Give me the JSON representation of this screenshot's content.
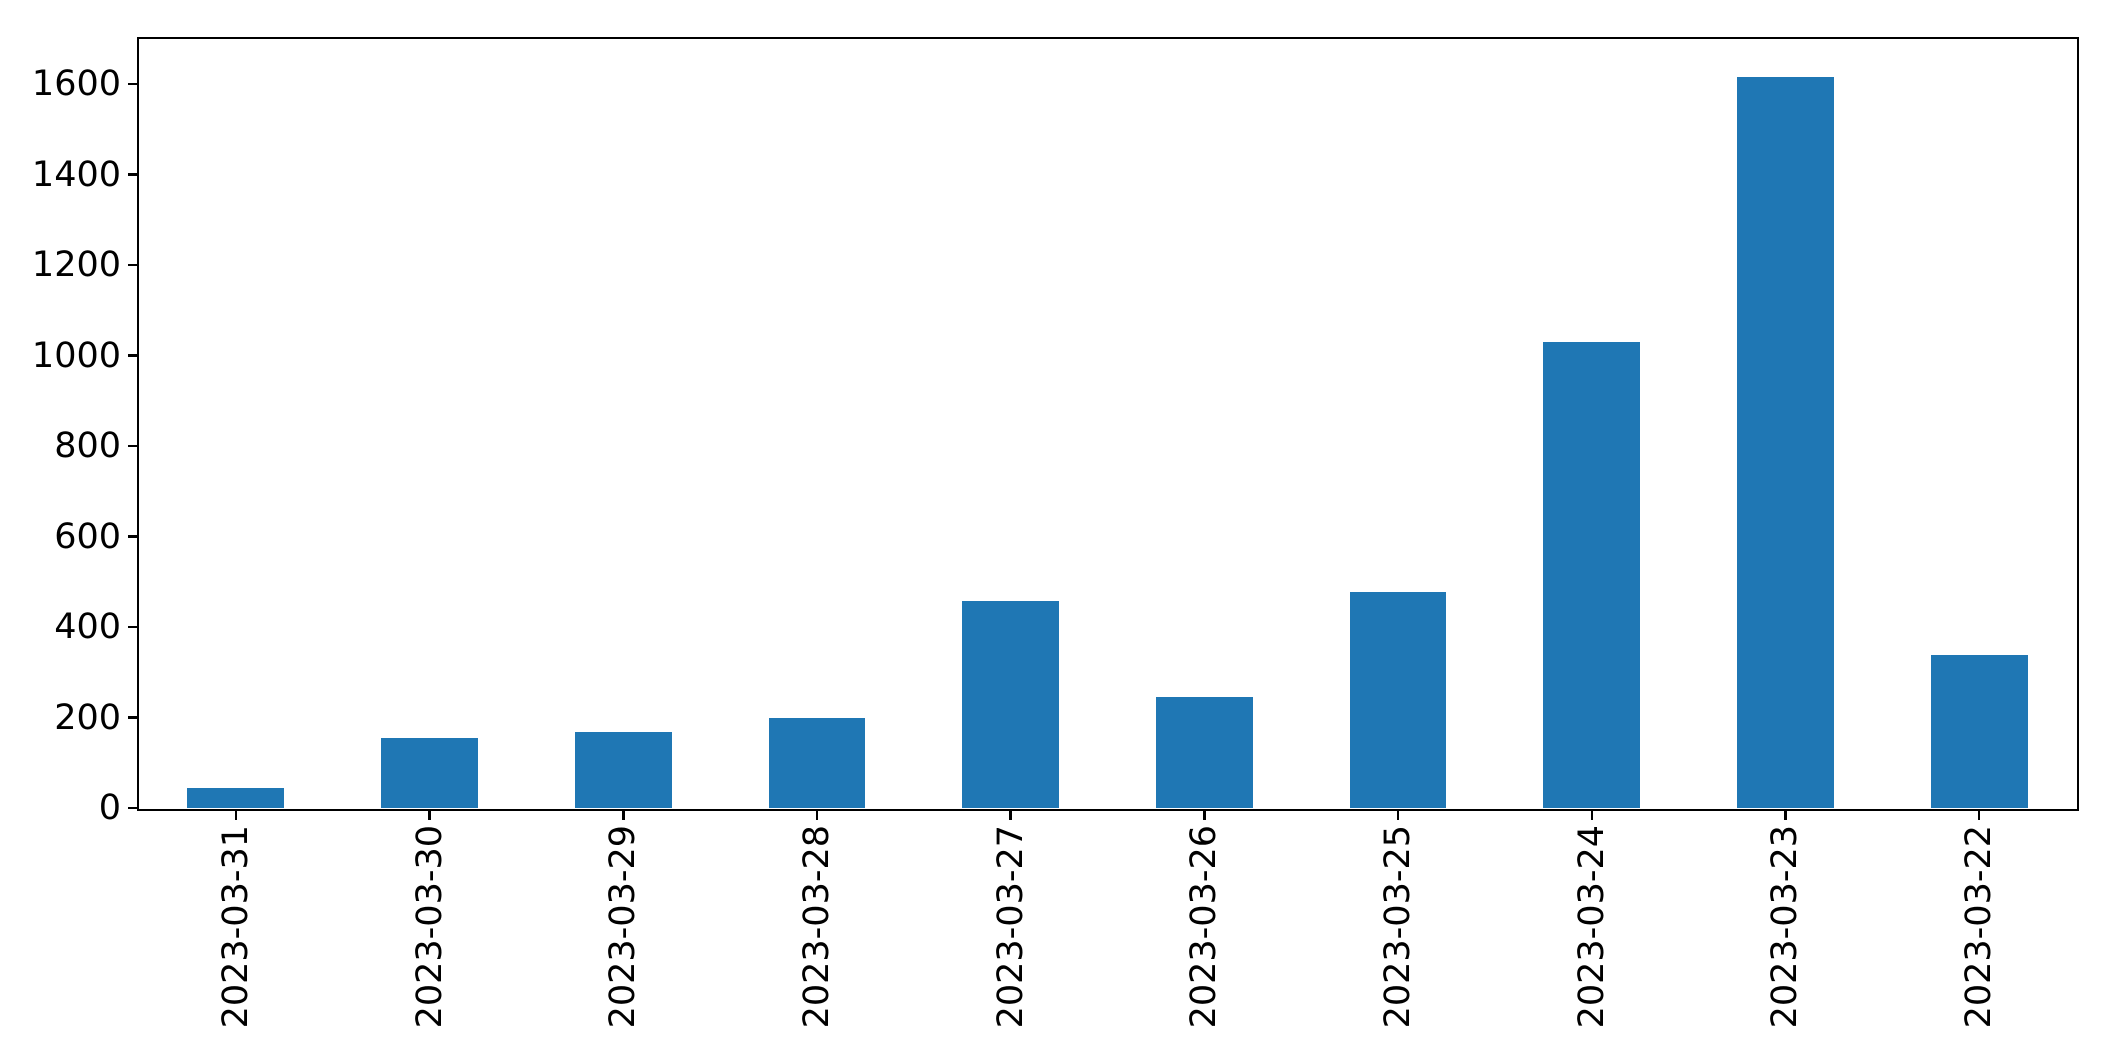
{
  "chart_data": {
    "type": "bar",
    "categories": [
      "2023-03-31",
      "2023-03-30",
      "2023-03-29",
      "2023-03-28",
      "2023-03-27",
      "2023-03-26",
      "2023-03-25",
      "2023-03-24",
      "2023-03-23",
      "2023-03-22"
    ],
    "values": [
      45,
      155,
      168,
      200,
      458,
      246,
      478,
      1030,
      1615,
      339
    ],
    "title": "",
    "xlabel": "",
    "ylabel": "",
    "ylim": [
      0,
      1700
    ],
    "yticks": [
      0,
      200,
      400,
      600,
      800,
      1000,
      1200,
      1400,
      1600
    ],
    "bar_color": "#1f77b4",
    "bar_width_fraction": 0.5,
    "grid": false,
    "legend_position": "none",
    "x_tick_rotation_deg": 90,
    "axis_color": "#000000",
    "background_color": "#ffffff"
  }
}
